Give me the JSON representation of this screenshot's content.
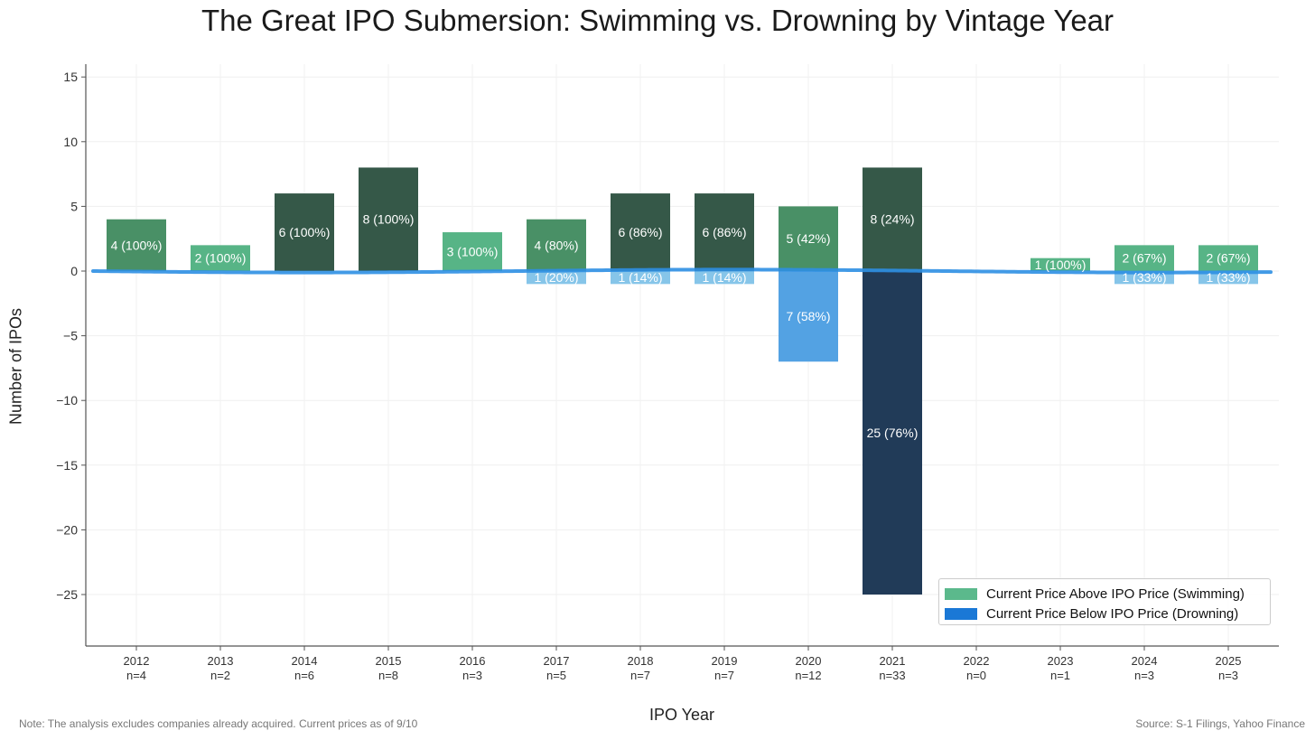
{
  "title": "The Great IPO Submersion: Swimming vs. Drowning by Vintage Year",
  "note": "Note: The analysis excludes companies already acquired. Current prices as of 9/10",
  "source": "Source: S-1 Filings, Yahoo Finance",
  "colors": {
    "swim_light": "#4eb07f",
    "swim_mid": "#3f8a5e",
    "swim_dark": "#2a4f3e",
    "drown_light": "#7fc2e8",
    "drown_mid": "#4a9de2",
    "drown_dark": "#15304f",
    "waterline": "#2e8fe3",
    "legend_swim": "#5bb98c",
    "legend_drown": "#1a78d6"
  },
  "chart_data": {
    "type": "bar",
    "title": "The Great IPO Submersion: Swimming vs. Drowning by Vintage Year",
    "xlabel": "IPO Year",
    "ylabel": "Number of IPOs",
    "ylim": [
      -29,
      16
    ],
    "yticks": [
      15,
      10,
      5,
      0,
      -5,
      -10,
      -15,
      -20,
      -25
    ],
    "ytick_labels": [
      "15",
      "10",
      "5",
      "0",
      "−5",
      "−10",
      "−15",
      "−20",
      "−25"
    ],
    "grid": true,
    "legend_position": "lower-right",
    "categories": [
      "2012",
      "2013",
      "2014",
      "2015",
      "2016",
      "2017",
      "2018",
      "2019",
      "2020",
      "2021",
      "2022",
      "2023",
      "2024",
      "2025"
    ],
    "n_labels": [
      "n=4",
      "n=2",
      "n=6",
      "n=8",
      "n=3",
      "n=5",
      "n=7",
      "n=7",
      "n=12",
      "n=33",
      "n=0",
      "n=1",
      "n=3",
      "n=3"
    ],
    "series": [
      {
        "name": "Current Price Above IPO Price (Swimming)",
        "values": [
          4,
          2,
          6,
          8,
          3,
          4,
          6,
          6,
          5,
          8,
          0,
          1,
          2,
          2
        ],
        "labels": [
          "4 (100%)",
          "2 (100%)",
          "6 (100%)",
          "8 (100%)",
          "3 (100%)",
          "4 (80%)",
          "6 (86%)",
          "6 (86%)",
          "5 (42%)",
          "8 (24%)",
          "",
          "1 (100%)",
          "2 (67%)",
          "2 (67%)"
        ]
      },
      {
        "name": "Current Price Below IPO Price (Drowning)",
        "values": [
          0,
          0,
          0,
          0,
          0,
          -1,
          -1,
          -1,
          -7,
          -25,
          0,
          0,
          -1,
          -1
        ],
        "labels": [
          "",
          "",
          "",
          "",
          "",
          "1 (20%)",
          "1 (14%)",
          "1 (14%)",
          "7 (58%)",
          "25 (76%)",
          "",
          "",
          "1 (33%)",
          "1 (33%)"
        ]
      }
    ]
  }
}
